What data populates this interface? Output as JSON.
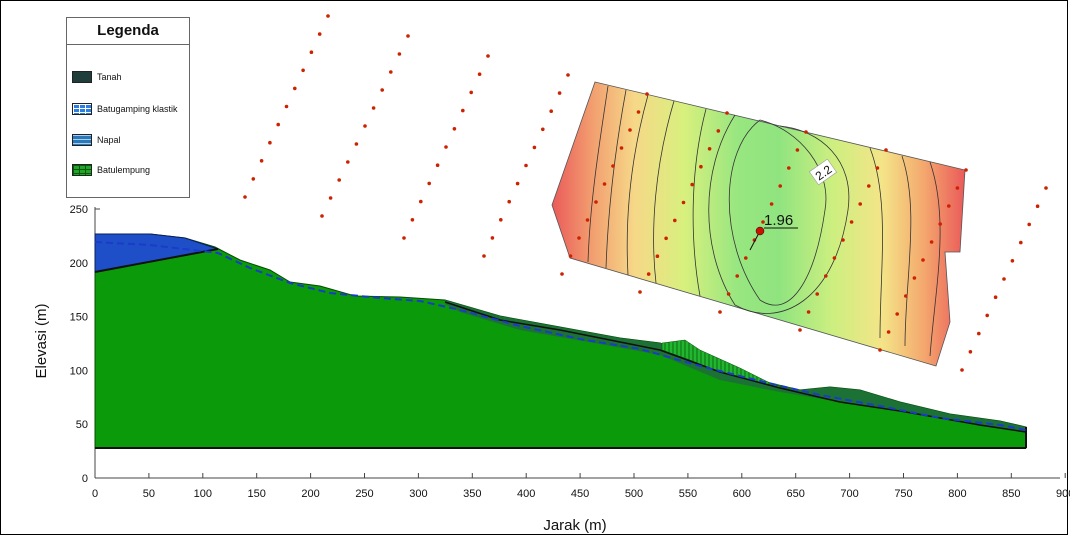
{
  "legend": {
    "title": "Legenda",
    "items": [
      {
        "label": "Tanah",
        "color": "#1e3d3b"
      },
      {
        "label": "Batugamping klastik",
        "color": "#2a7fe0"
      },
      {
        "label": "Napal",
        "color": "#2c78b4"
      },
      {
        "label": "Batulempung",
        "color": "#21a52a"
      }
    ]
  },
  "axes": {
    "xlabel": "Jarak (m)",
    "ylabel": "Elevasi (m)",
    "xticks": [
      "0",
      "50",
      "100",
      "150",
      "200",
      "250",
      "300",
      "350",
      "400",
      "450",
      "500",
      "550",
      "600",
      "650",
      "700",
      "750",
      "800",
      "850",
      "900"
    ],
    "yticks": [
      "0",
      "50",
      "100",
      "150",
      "200",
      "250"
    ]
  },
  "annotations": {
    "fos_min": "1.96",
    "contour_label": "2.2"
  },
  "colors": {
    "ground": "#0a9a0a",
    "upper_layer": "#1e4fc8",
    "soil_cover": "#1e6e3a",
    "water_table": "#1a3cc8",
    "grid_points": "#cc2200",
    "contour_low": "#7ee07e",
    "contour_high": "#ee5a5a"
  }
}
